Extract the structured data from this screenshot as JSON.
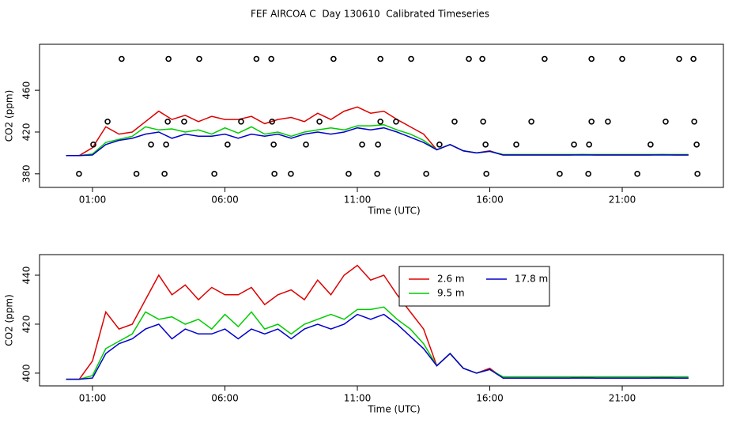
{
  "chart_data": [
    {
      "type": "line",
      "title": "FEF AIRCOA C  Day 130610  Calibrated Timeseries",
      "xlabel": "Time (UTC)",
      "ylabel": "CO2 (ppm)",
      "xlim": [
        -1.0,
        24.82
      ],
      "ylim": [
        367,
        504
      ],
      "xticks": [
        {
          "value": 1,
          "label": "01:00"
        },
        {
          "value": 6,
          "label": "06:00"
        },
        {
          "value": 11,
          "label": "11:00"
        },
        {
          "value": 16,
          "label": "16:00"
        },
        {
          "value": 21,
          "label": "21:00"
        }
      ],
      "yticks": [
        380,
        420,
        460
      ],
      "x": [
        0,
        0.5,
        1,
        1.5,
        2,
        2.5,
        3,
        3.5,
        4,
        4.5,
        5,
        5.5,
        6,
        6.5,
        7,
        7.5,
        8,
        8.5,
        9,
        9.5,
        10,
        10.5,
        11,
        11.5,
        12,
        12.5,
        13,
        13.5,
        14,
        14.5,
        15,
        15.5,
        16,
        16.5,
        17,
        17.5,
        18,
        18.5,
        19,
        19.5,
        20,
        20.5,
        21,
        21.5,
        22,
        22.5,
        23,
        23.5
      ],
      "series": [
        {
          "color": "#dd0000",
          "values": [
            397.5,
            397.5,
            405,
            425,
            418,
            420,
            430,
            440,
            432,
            436,
            430,
            435,
            432,
            432,
            435,
            428,
            432,
            434,
            430,
            438,
            432,
            440,
            444,
            438,
            440,
            432,
            425,
            418,
            403,
            408,
            402,
            400,
            402,
            398,
            398,
            398,
            398,
            398,
            398,
            398.5,
            398,
            398,
            398,
            398,
            398,
            398.5,
            398,
            398
          ]
        },
        {
          "color": "#00cc00",
          "values": [
            397.5,
            397.5,
            399,
            410,
            413,
            416,
            425,
            422,
            423,
            420,
            422,
            418,
            424,
            419,
            425,
            418,
            420,
            416,
            420,
            422,
            424,
            422,
            426,
            426,
            427,
            422,
            418,
            412,
            403,
            408,
            402,
            400,
            401.5,
            398.5,
            398.5,
            398.5,
            398.5,
            398.5,
            398.5,
            398.5,
            398.5,
            398.5,
            398.5,
            398.5,
            398.5,
            398.5,
            398.5,
            398.5
          ]
        },
        {
          "color": "#0000cc",
          "values": [
            397.5,
            397.5,
            398,
            408,
            412,
            414,
            418,
            420,
            414,
            418,
            416,
            416,
            418,
            414,
            418,
            416,
            418,
            414,
            418,
            420,
            418,
            420,
            424,
            422,
            424,
            420,
            415,
            410,
            403,
            408,
            402,
            400,
            401.5,
            398,
            398,
            398,
            398,
            398,
            398,
            398,
            398,
            398,
            398,
            398,
            398,
            398,
            398,
            398
          ]
        },
        {
          "color": "#000000",
          "marker": "circle",
          "x": [
            2.1,
            3.87,
            5.03,
            7.19,
            7.75,
            10.1,
            11.87,
            13.03,
            15.21,
            15.72,
            18.07,
            19.84,
            21.0,
            23.15,
            23.69,
            1.57,
            3.84,
            4.46,
            6.61,
            7.78,
            9.57,
            11.87,
            12.46,
            14.67,
            15.75,
            17.57,
            19.84,
            20.46,
            22.64,
            23.72,
            1.03,
            3.21,
            3.78,
            6.1,
            7.84,
            9.06,
            11.18,
            11.78,
            14.1,
            15.84,
            17.0,
            19.18,
            19.75,
            22.07,
            23.81,
            0.49,
            2.66,
            3.72,
            5.6,
            7.87,
            8.49,
            10.67,
            11.75,
            13.6,
            15.87,
            18.64,
            19.72,
            21.57,
            23.84
          ],
          "values": [
            490,
            490,
            490,
            490,
            490,
            490,
            490,
            490,
            490,
            490,
            490,
            490,
            490,
            490,
            490,
            430,
            430,
            430,
            430,
            430,
            430,
            430,
            430,
            430,
            430,
            430,
            430,
            430,
            430,
            430,
            408,
            408,
            408,
            408,
            408,
            408,
            408,
            408,
            408,
            408,
            408,
            408,
            408,
            408,
            408,
            380,
            380,
            380,
            380,
            380,
            380,
            380,
            380,
            380,
            380,
            380,
            380,
            380,
            380
          ]
        }
      ]
    },
    {
      "type": "line",
      "xlabel": "Time (UTC)",
      "ylabel": "CO2 (ppm)",
      "xlim": [
        -1.0,
        24.82
      ],
      "ylim": [
        394.8,
        448.4
      ],
      "xticks": [
        {
          "value": 1,
          "label": "01:00"
        },
        {
          "value": 6,
          "label": "06:00"
        },
        {
          "value": 11,
          "label": "11:00"
        },
        {
          "value": 16,
          "label": "16:00"
        },
        {
          "value": 21,
          "label": "21:00"
        }
      ],
      "yticks": [
        400,
        420,
        440
      ],
      "legend": "upper-right",
      "x": [
        0,
        0.5,
        1,
        1.5,
        2,
        2.5,
        3,
        3.5,
        4,
        4.5,
        5,
        5.5,
        6,
        6.5,
        7,
        7.5,
        8,
        8.5,
        9,
        9.5,
        10,
        10.5,
        11,
        11.5,
        12,
        12.5,
        13,
        13.5,
        14,
        14.5,
        15,
        15.5,
        16,
        16.5,
        17,
        17.5,
        18,
        18.5,
        19,
        19.5,
        20,
        20.5,
        21,
        21.5,
        22,
        22.5,
        23,
        23.5
      ],
      "series": [
        {
          "name": "2.6 m",
          "color": "#dd0000",
          "values": [
            397.5,
            397.5,
            405,
            425,
            418,
            420,
            430,
            440,
            432,
            436,
            430,
            435,
            432,
            432,
            435,
            428,
            432,
            434,
            430,
            438,
            432,
            440,
            444,
            438,
            440,
            432,
            425,
            418,
            403,
            408,
            402,
            400,
            402,
            398,
            398,
            398,
            398,
            398,
            398,
            398.5,
            398,
            398,
            398,
            398,
            398,
            398.5,
            398,
            398
          ]
        },
        {
          "name": "9.5 m",
          "color": "#00cc00",
          "values": [
            397.5,
            397.5,
            399,
            410,
            413,
            416,
            425,
            422,
            423,
            420,
            422,
            418,
            424,
            419,
            425,
            418,
            420,
            416,
            420,
            422,
            424,
            422,
            426,
            426,
            427,
            422,
            418,
            412,
            403,
            408,
            402,
            400,
            401.5,
            398.5,
            398.5,
            398.5,
            398.5,
            398.5,
            398.5,
            398.5,
            398.5,
            398.5,
            398.5,
            398.5,
            398.5,
            398.5,
            398.5,
            398.5
          ]
        },
        {
          "name": "17.8 m",
          "color": "#0000cc",
          "values": [
            397.5,
            397.5,
            398,
            408,
            412,
            414,
            418,
            420,
            414,
            418,
            416,
            416,
            418,
            414,
            418,
            416,
            418,
            414,
            418,
            420,
            418,
            420,
            424,
            422,
            424,
            420,
            415,
            410,
            403,
            408,
            402,
            400,
            401.5,
            398,
            398,
            398,
            398,
            398,
            398,
            398,
            398,
            398,
            398,
            398,
            398,
            398,
            398,
            398
          ]
        }
      ]
    }
  ]
}
